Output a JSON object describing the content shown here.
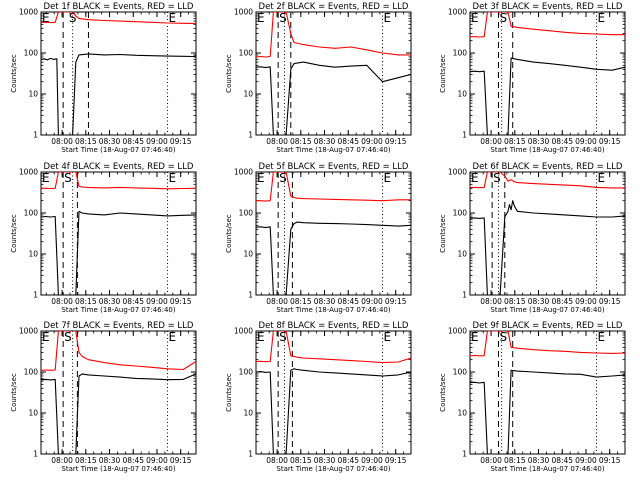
{
  "colors": {
    "events": "#000000",
    "lld": "#ff0000",
    "axis": "#000000",
    "background": "#ffffff"
  },
  "common": {
    "ylabel": "Counts/sec",
    "xlabel": "Start Time (18-Aug-07 07:46:40)",
    "ytick_labels": [
      "1",
      "10",
      "100",
      "1000"
    ],
    "xtick_labels": [
      "08:00",
      "08:15",
      "08:30",
      "08:45",
      "09:00",
      "09:15"
    ],
    "marker_labels": {
      "eclipse": "E",
      "saa": "S"
    },
    "ylim": [
      1,
      1000
    ],
    "xlim_minutes_from_start": [
      0,
      98
    ]
  },
  "chart_data": [
    {
      "type": "line",
      "title": "Det 1f BLACK = Events, RED = LLD",
      "events": {
        "x": [
          0,
          2,
          4,
          6,
          8,
          10,
          11,
          13,
          16,
          19,
          20,
          22,
          24,
          30,
          40,
          50,
          60,
          70,
          80,
          90,
          96,
          98
        ],
        "y": [
          70,
          72,
          68,
          74,
          70,
          72,
          1,
          1,
          1,
          1,
          1,
          60,
          90,
          95,
          90,
          92,
          88,
          86,
          84,
          83,
          82,
          85
        ]
      },
      "lld": {
        "x": [
          0,
          3,
          6,
          9,
          11,
          13,
          16,
          19,
          20,
          22,
          24,
          30,
          40,
          50,
          60,
          70,
          80,
          90,
          98
        ],
        "y": [
          560,
          560,
          555,
          560,
          1000,
          1000,
          1000,
          1000,
          1000,
          800,
          700,
          650,
          620,
          600,
          580,
          560,
          540,
          530,
          520
        ]
      },
      "markers": [
        {
          "type": "dashed",
          "x": 14
        },
        {
          "type": "dashed",
          "x": 30
        },
        {
          "type": "dotted",
          "x": 20
        },
        {
          "type": "dotted",
          "x": 80
        }
      ],
      "labels": [
        {
          "text": "E",
          "x": 0
        },
        {
          "text": "S",
          "x": 17
        },
        {
          "text": "E",
          "x": 80
        }
      ]
    },
    {
      "type": "line",
      "title": "Det 2f BLACK = Events, RED = LLD",
      "events": {
        "x": [
          0,
          3,
          6,
          9,
          11,
          13,
          16,
          19,
          22,
          24,
          30,
          40,
          50,
          60,
          70,
          80,
          90,
          98
        ],
        "y": [
          45,
          46,
          44,
          46,
          1,
          1,
          1,
          1,
          40,
          55,
          60,
          50,
          45,
          48,
          50,
          20,
          25,
          30
        ]
      },
      "lld": {
        "x": [
          0,
          3,
          6,
          9,
          11,
          13,
          16,
          19,
          22,
          24,
          30,
          40,
          50,
          60,
          70,
          80,
          90,
          98
        ],
        "y": [
          80,
          82,
          80,
          82,
          1000,
          1000,
          1000,
          1000,
          300,
          180,
          160,
          140,
          130,
          140,
          120,
          100,
          90,
          90
        ]
      },
      "markers": [
        {
          "type": "dashed",
          "x": 14
        },
        {
          "type": "dashed",
          "x": 22
        },
        {
          "type": "dotted",
          "x": 18
        },
        {
          "type": "dotted",
          "x": 80
        }
      ],
      "labels": [
        {
          "text": "E",
          "x": 0
        },
        {
          "text": "S",
          "x": 14
        },
        {
          "text": "E",
          "x": 80
        }
      ]
    },
    {
      "type": "line",
      "title": "Det 3f BLACK = Events, RED = LLD",
      "events": {
        "x": [
          0,
          3,
          6,
          9,
          11,
          13,
          16,
          19,
          22,
          24,
          26,
          30,
          40,
          50,
          60,
          70,
          80,
          90,
          98
        ],
        "y": [
          35,
          36,
          35,
          36,
          1,
          1,
          1,
          1,
          1,
          1,
          75,
          70,
          60,
          55,
          50,
          45,
          40,
          38,
          45
        ]
      },
      "lld": {
        "x": [
          0,
          3,
          6,
          9,
          11,
          13,
          16,
          19,
          22,
          24,
          26,
          30,
          40,
          50,
          60,
          70,
          80,
          90,
          98
        ],
        "y": [
          250,
          250,
          245,
          250,
          1000,
          1000,
          1000,
          1000,
          1000,
          1000,
          450,
          420,
          380,
          350,
          320,
          300,
          290,
          280,
          280
        ]
      },
      "markers": [
        {
          "type": "dashed",
          "x": 18
        },
        {
          "type": "dashed",
          "x": 27
        },
        {
          "type": "dotted",
          "x": 20
        },
        {
          "type": "dotted",
          "x": 80
        }
      ],
      "labels": [
        {
          "text": "E",
          "x": 0
        },
        {
          "text": "S",
          "x": 18
        },
        {
          "text": "E",
          "x": 80
        }
      ]
    },
    {
      "type": "line",
      "title": "Det 4f BLACK = Events, RED = LLD",
      "events": {
        "x": [
          0,
          3,
          6,
          9,
          11,
          13,
          16,
          19,
          22,
          24,
          26,
          30,
          40,
          50,
          60,
          70,
          80,
          90,
          98
        ],
        "y": [
          80,
          82,
          80,
          82,
          1,
          1,
          1,
          1,
          1,
          110,
          100,
          95,
          90,
          100,
          95,
          90,
          85,
          88,
          90
        ]
      },
      "lld": {
        "x": [
          0,
          3,
          6,
          9,
          11,
          13,
          16,
          19,
          22,
          24,
          26,
          30,
          40,
          50,
          60,
          70,
          80,
          90,
          98
        ],
        "y": [
          400,
          400,
          395,
          400,
          1000,
          1000,
          1000,
          1000,
          1000,
          450,
          430,
          420,
          410,
          420,
          410,
          400,
          390,
          395,
          400
        ]
      },
      "markers": [
        {
          "type": "dashed",
          "x": 14
        },
        {
          "type": "dashed",
          "x": 23
        },
        {
          "type": "dotted",
          "x": 20
        },
        {
          "type": "dotted",
          "x": 80
        }
      ],
      "labels": [
        {
          "text": "E",
          "x": 0
        },
        {
          "text": "S",
          "x": 14
        },
        {
          "text": "E",
          "x": 80
        }
      ]
    },
    {
      "type": "line",
      "title": "Det 5f BLACK = Events, RED = LLD",
      "events": {
        "x": [
          0,
          3,
          6,
          9,
          11,
          13,
          16,
          19,
          22,
          24,
          26,
          30,
          40,
          50,
          60,
          70,
          80,
          90,
          98
        ],
        "y": [
          45,
          46,
          44,
          46,
          1,
          1,
          1,
          1,
          40,
          55,
          60,
          58,
          56,
          55,
          54,
          52,
          50,
          48,
          50
        ]
      },
      "lld": {
        "x": [
          0,
          3,
          6,
          9,
          11,
          13,
          16,
          19,
          22,
          24,
          26,
          30,
          40,
          50,
          60,
          70,
          80,
          90,
          98
        ],
        "y": [
          200,
          200,
          195,
          200,
          1000,
          1000,
          1000,
          1000,
          260,
          240,
          230,
          225,
          220,
          215,
          210,
          205,
          200,
          210,
          210
        ]
      },
      "markers": [
        {
          "type": "dashed",
          "x": 14
        },
        {
          "type": "dashed",
          "x": 23
        },
        {
          "type": "dotted",
          "x": 18
        },
        {
          "type": "dotted",
          "x": 80
        }
      ],
      "labels": [
        {
          "text": "E",
          "x": 0
        },
        {
          "text": "S",
          "x": 14
        },
        {
          "text": "E",
          "x": 80
        }
      ]
    },
    {
      "type": "line",
      "title": "Det 6f BLACK = Events, RED = LLD",
      "events": {
        "x": [
          0,
          3,
          6,
          9,
          11,
          13,
          16,
          19,
          22,
          24,
          25,
          26,
          27,
          28,
          30,
          40,
          50,
          60,
          70,
          80,
          90,
          98
        ],
        "y": [
          75,
          76,
          74,
          76,
          1,
          1,
          1,
          1,
          80,
          110,
          160,
          120,
          200,
          150,
          110,
          100,
          95,
          90,
          85,
          80,
          80,
          85
        ]
      },
      "lld": {
        "x": [
          0,
          3,
          6,
          9,
          11,
          13,
          16,
          19,
          22,
          24,
          26,
          28,
          30,
          40,
          50,
          60,
          70,
          80,
          90,
          98
        ],
        "y": [
          420,
          420,
          415,
          420,
          1000,
          1000,
          1000,
          1000,
          800,
          600,
          650,
          580,
          550,
          520,
          500,
          480,
          460,
          420,
          410,
          410
        ]
      },
      "markers": [
        {
          "type": "dashed",
          "x": 14
        },
        {
          "type": "dashed",
          "x": 22
        },
        {
          "type": "dotted",
          "x": 18
        },
        {
          "type": "dotted",
          "x": 80
        }
      ],
      "labels": [
        {
          "text": "E",
          "x": 0
        },
        {
          "text": "S",
          "x": 14
        },
        {
          "text": "E",
          "x": 80
        }
      ]
    },
    {
      "type": "line",
      "title": "Det 7f BLACK = Events, RED = LLD",
      "events": {
        "x": [
          0,
          3,
          6,
          9,
          11,
          13,
          16,
          19,
          22,
          24,
          26,
          30,
          40,
          50,
          60,
          70,
          80,
          90,
          98
        ],
        "y": [
          65,
          66,
          64,
          66,
          1,
          1,
          1,
          1,
          1,
          80,
          90,
          85,
          80,
          75,
          70,
          68,
          65,
          66,
          90
        ]
      },
      "lld": {
        "x": [
          0,
          3,
          6,
          9,
          11,
          13,
          16,
          19,
          22,
          24,
          26,
          30,
          40,
          50,
          60,
          70,
          80,
          90,
          98
        ],
        "y": [
          110,
          112,
          110,
          112,
          1000,
          1000,
          1000,
          1000,
          1000,
          300,
          240,
          200,
          170,
          150,
          140,
          130,
          120,
          115,
          180
        ]
      },
      "markers": [
        {
          "type": "dashed",
          "x": 14
        },
        {
          "type": "dashed",
          "x": 23
        },
        {
          "type": "dotted",
          "x": 20
        },
        {
          "type": "dotted",
          "x": 80
        }
      ],
      "labels": [
        {
          "text": "E",
          "x": 0
        },
        {
          "text": "S",
          "x": 14
        },
        {
          "text": "E",
          "x": 80
        }
      ]
    },
    {
      "type": "line",
      "title": "Det 8f BLACK = Events, RED = LLD",
      "events": {
        "x": [
          0,
          3,
          6,
          9,
          11,
          13,
          16,
          19,
          22,
          24,
          26,
          30,
          40,
          50,
          60,
          70,
          80,
          90,
          98
        ],
        "y": [
          100,
          102,
          98,
          100,
          1,
          1,
          1,
          1,
          110,
          120,
          115,
          110,
          100,
          95,
          90,
          85,
          80,
          85,
          100
        ]
      },
      "lld": {
        "x": [
          0,
          3,
          6,
          9,
          11,
          13,
          16,
          19,
          22,
          24,
          26,
          30,
          40,
          50,
          60,
          70,
          80,
          90,
          98
        ],
        "y": [
          180,
          182,
          178,
          180,
          1000,
          1000,
          1000,
          1000,
          250,
          240,
          230,
          220,
          210,
          200,
          190,
          180,
          170,
          175,
          220
        ]
      },
      "markers": [
        {
          "type": "dashed",
          "x": 14
        },
        {
          "type": "dashed",
          "x": 23
        },
        {
          "type": "dotted",
          "x": 18
        },
        {
          "type": "dotted",
          "x": 80
        }
      ],
      "labels": [
        {
          "text": "E",
          "x": 0
        },
        {
          "text": "S",
          "x": 14
        },
        {
          "text": "E",
          "x": 80
        }
      ]
    },
    {
      "type": "line",
      "title": "Det 9f BLACK = Events, RED = LLD",
      "events": {
        "x": [
          0,
          3,
          6,
          9,
          11,
          13,
          16,
          19,
          22,
          24,
          26,
          30,
          40,
          50,
          60,
          70,
          80,
          90,
          98
        ],
        "y": [
          55,
          56,
          54,
          56,
          1,
          1,
          1,
          1,
          1,
          1,
          110,
          105,
          100,
          95,
          90,
          88,
          75,
          80,
          85
        ]
      },
      "lld": {
        "x": [
          0,
          3,
          6,
          9,
          11,
          13,
          16,
          19,
          22,
          24,
          26,
          30,
          40,
          50,
          60,
          70,
          80,
          90,
          98
        ],
        "y": [
          250,
          252,
          248,
          250,
          1000,
          1000,
          1000,
          1000,
          1000,
          1000,
          400,
          380,
          350,
          330,
          320,
          300,
          290,
          285,
          290
        ]
      },
      "markers": [
        {
          "type": "dashed",
          "x": 18
        },
        {
          "type": "dashed",
          "x": 27
        },
        {
          "type": "dotted",
          "x": 20
        },
        {
          "type": "dotted",
          "x": 80
        }
      ],
      "labels": [
        {
          "text": "E",
          "x": 0
        },
        {
          "text": "S",
          "x": 18
        },
        {
          "text": "E",
          "x": 80
        }
      ]
    }
  ]
}
